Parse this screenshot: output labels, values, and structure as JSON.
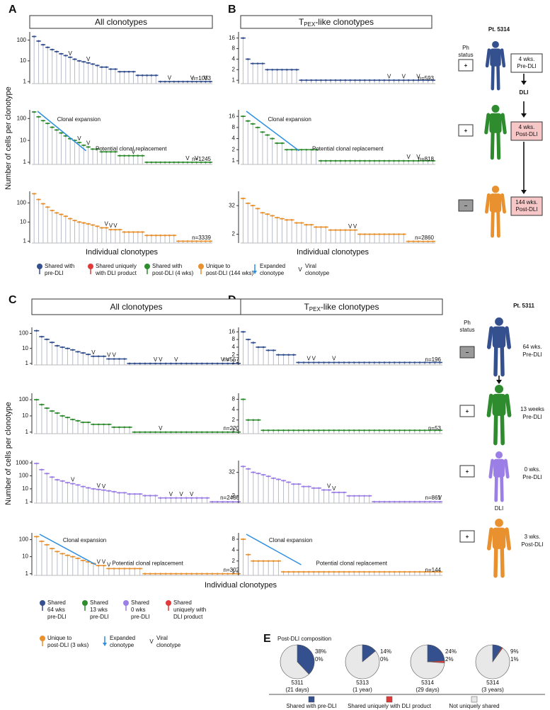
{
  "panel_letters": [
    "A",
    "B",
    "C",
    "D",
    "E"
  ],
  "y_axis_label": "Number of cells per clonotype",
  "x_axis_label": "Individual clonotypes",
  "headers": [
    "All clonotypes",
    {
      "main": "T",
      "sub": "PEX",
      "rest": "-like clonotypes"
    },
    "All clonotypes",
    {
      "main": "T",
      "sub": "PEX",
      "rest": "-like clonotypes"
    }
  ],
  "legend_top": [
    {
      "lines": [
        "Shared with",
        "pre-DLI"
      ],
      "color": "#34508f",
      "icon": "pin"
    },
    {
      "lines": [
        "Shared uniquely",
        "with DLI product"
      ],
      "color": "#e03a3a",
      "icon": "pin"
    },
    {
      "lines": [
        "Shared with",
        "post-DLI (4 wks)"
      ],
      "color": "#2e8b2e",
      "icon": "pin"
    },
    {
      "lines": [
        "Unique to",
        "post-DLI (144 wks)"
      ],
      "color": "#e8912e",
      "icon": "pin"
    },
    {
      "lines": [
        "Expanded",
        "clonotype"
      ],
      "color": "#2f8fe0",
      "icon": "arrow"
    },
    {
      "lines": [
        "Viral",
        "clonotype"
      ],
      "color": "#111111",
      "icon": "v",
      "symbol": "V"
    }
  ],
  "legend_bottom": [
    {
      "lines": [
        "Shared",
        "64 wks",
        "pre-DLI"
      ],
      "color": "#34508f",
      "icon": "pin"
    },
    {
      "lines": [
        "Shared",
        "13 wks",
        "pre-DLI"
      ],
      "color": "#2e8b2e",
      "icon": "pin"
    },
    {
      "lines": [
        "Shared",
        "0 wks",
        "pre-DLI"
      ],
      "color": "#9b7fe6",
      "icon": "pin"
    },
    {
      "lines": [
        "Shared",
        "uniquely with",
        "DLI product"
      ],
      "color": "#e03a3a",
      "icon": "pin"
    },
    {
      "lines": [
        "Unique to",
        "post-DLI (3 wks)"
      ],
      "color": "#e8912e",
      "icon": "pin"
    },
    {
      "lines": [
        "Expanded",
        "clonotype"
      ],
      "color": "#2f8fe0",
      "icon": "arrow"
    },
    {
      "lines": [
        "Viral",
        "clonotype"
      ],
      "color": "#111111",
      "icon": "v",
      "symbol": "V"
    }
  ],
  "patients": [
    {
      "title": "Pt. 5314",
      "ph_status": [
        "Ph",
        "status"
      ],
      "dli": "DLI",
      "rows": [
        {
          "sign": "+",
          "sign_color": "#ffffff",
          "label": [
            "4 wks.",
            "Pre-DLI"
          ],
          "label_bg": "#ffffff",
          "color": "#34508f"
        },
        {
          "sign": "+",
          "sign_color": "#ffffff",
          "label": [
            "4 wks.",
            "Post-DLI"
          ],
          "label_bg": "#f7c6c6",
          "color": "#2e8b2e"
        },
        {
          "sign": "−",
          "sign_color": "#9a9a9a",
          "label": [
            "144 wks.",
            "Post-DLI"
          ],
          "label_bg": "#f7c6c6",
          "color": "#e8912e"
        }
      ]
    },
    {
      "title": "Pt. 5311",
      "ph_status": [
        "Ph",
        "status"
      ],
      "dli": "DLI",
      "rows": [
        {
          "sign": "−",
          "sign_color": "#9a9a9a",
          "label": [
            "64 wks.",
            "Pre-DLI"
          ],
          "color": "#34508f"
        },
        {
          "sign": "+",
          "sign_color": "#ffffff",
          "label": [
            "13 weeks",
            "Pre-DLI"
          ],
          "color": "#2e8b2e"
        },
        {
          "sign": "+",
          "sign_color": "#ffffff",
          "label": [
            "0 wks.",
            "Pre-DLI"
          ],
          "color": "#9b7fe6"
        },
        {
          "sign": "+",
          "sign_color": "#ffffff",
          "label": [
            "3 wks.",
            "Post-DLI"
          ],
          "color": "#e8912e"
        }
      ]
    }
  ],
  "chart_data": [
    {
      "type": "lollipop",
      "log": true,
      "ylim": [
        0.8,
        250
      ],
      "yticks": [
        1,
        10,
        100
      ],
      "color": "#34508f",
      "values": [
        150,
        90,
        60,
        45,
        35,
        28,
        22,
        18,
        15,
        12,
        10,
        9,
        8,
        7,
        6,
        5,
        5,
        4,
        4,
        3,
        3,
        3,
        3,
        2,
        2,
        2,
        2,
        2,
        1,
        1,
        1,
        1,
        1,
        1,
        1,
        1,
        1,
        1,
        1,
        1
      ],
      "n_label": "n=1033",
      "viral_label": "V",
      "viral_at": [
        8,
        12,
        30,
        35,
        38
      ]
    },
    {
      "type": "lollipop",
      "log": true,
      "ylim": [
        0.8,
        250
      ],
      "yticks": [
        1,
        10,
        100
      ],
      "color": "#2e8b2e",
      "values": [
        200,
        120,
        80,
        60,
        40,
        30,
        22,
        16,
        12,
        10,
        8,
        6,
        5,
        4,
        4,
        3,
        3,
        3,
        3,
        2,
        2,
        2,
        2,
        2,
        2,
        1,
        1,
        1,
        1,
        1,
        1,
        1,
        1,
        1,
        1,
        1,
        1,
        1,
        1,
        1
      ],
      "n_label": "n=1245",
      "viral_label": "V",
      "viral_at": [
        10,
        12,
        22,
        34,
        36
      ],
      "annotations": [
        {
          "text": "Clonal expansion",
          "color": "#2f8fe0"
        },
        {
          "text": "Potential clonal replacement",
          "color": "#2e8b2e"
        }
      ]
    },
    {
      "type": "lollipop",
      "log": true,
      "ylim": [
        0.8,
        400
      ],
      "yticks": [
        1,
        10,
        100
      ],
      "color": "#e8912e",
      "values": [
        300,
        150,
        90,
        60,
        40,
        30,
        25,
        20,
        15,
        12,
        10,
        9,
        8,
        7,
        6,
        5,
        5,
        4,
        4,
        4,
        3,
        3,
        3,
        3,
        3,
        2,
        2,
        2,
        2,
        2,
        2,
        2,
        1,
        1,
        1,
        1,
        1,
        1,
        1,
        1
      ],
      "n_label": "n=3339",
      "viral_label": "V",
      "viral_at": [
        16,
        17,
        18
      ]
    },
    {
      "type": "lollipop",
      "log": true,
      "ylim": [
        0.8,
        24
      ],
      "yticks": [
        1,
        2,
        4,
        8,
        16
      ],
      "color": "#34508f",
      "values": [
        16,
        4,
        3,
        3,
        3,
        2,
        2,
        2,
        2,
        2,
        2,
        2,
        1,
        1,
        1,
        1,
        1,
        1,
        1,
        1,
        1,
        1,
        1,
        1,
        1,
        1,
        1,
        1,
        1,
        1,
        1,
        1,
        1,
        1,
        1,
        1,
        1,
        1,
        1,
        1
      ],
      "n_label": "n=593",
      "viral_label": "V",
      "viral_at": [
        30,
        33,
        36
      ]
    },
    {
      "type": "lollipop",
      "log": true,
      "ylim": [
        0.8,
        24
      ],
      "yticks": [
        1,
        2,
        4,
        8,
        16
      ],
      "color": "#2e8b2e",
      "values": [
        16,
        12,
        10,
        8,
        6,
        5,
        4,
        3,
        3,
        2,
        2,
        2,
        2,
        2,
        2,
        2,
        1,
        1,
        1,
        1,
        1,
        1,
        1,
        1,
        1,
        1,
        1,
        1,
        1,
        1,
        1,
        1,
        1,
        1,
        1,
        1,
        1,
        1,
        1,
        1
      ],
      "n_label": "n=818",
      "viral_label": "V",
      "viral_at": [
        34,
        36
      ],
      "annotations": [
        {
          "text": "Clonal expansion",
          "color": "#2f8fe0"
        },
        {
          "text": "Potential clonal replacement",
          "color": "#2e8b2e"
        }
      ]
    },
    {
      "type": "lollipop",
      "log": true,
      "ylim": [
        0.85,
        128
      ],
      "yticks": [
        2,
        32
      ],
      "color": "#e8912e",
      "values": [
        64,
        40,
        32,
        24,
        16,
        14,
        12,
        10,
        9,
        8,
        8,
        6,
        6,
        5,
        5,
        4,
        4,
        4,
        3,
        3,
        3,
        3,
        3,
        3,
        2,
        2,
        2,
        2,
        2,
        2,
        2,
        2,
        2,
        2,
        1,
        1,
        1,
        1,
        1,
        1
      ],
      "n_label": "n=2860",
      "viral_label": "V",
      "viral_at": [
        22,
        23
      ]
    },
    {
      "type": "lollipop",
      "log": true,
      "ylim": [
        0.8,
        250
      ],
      "yticks": [
        1,
        10,
        100
      ],
      "color": "#34508f",
      "values": [
        150,
        60,
        40,
        25,
        15,
        12,
        10,
        8,
        6,
        5,
        4,
        3,
        3,
        3,
        2,
        2,
        2,
        2,
        1,
        1,
        1,
        1,
        1,
        1,
        1,
        1,
        1,
        1,
        1,
        1,
        1,
        1,
        1,
        1,
        1,
        1,
        1,
        1,
        1,
        1
      ],
      "n_label": "n=557",
      "viral_label": "V",
      "viral_at": [
        11,
        14,
        15,
        23,
        24,
        27,
        36,
        37
      ]
    },
    {
      "type": "lollipop",
      "log": true,
      "ylim": [
        0.8,
        250
      ],
      "yticks": [
        1,
        10,
        100
      ],
      "color": "#2e8b2e",
      "values": [
        100,
        50,
        30,
        20,
        15,
        10,
        8,
        6,
        5,
        4,
        4,
        3,
        3,
        3,
        3,
        2,
        2,
        2,
        2,
        1,
        1,
        1,
        1,
        1,
        1,
        1,
        1,
        1,
        1,
        1,
        1,
        1,
        1,
        1,
        1,
        1,
        1,
        1,
        1,
        1
      ],
      "n_label": "n=220",
      "viral_label": "V",
      "viral_at": [
        24
      ]
    },
    {
      "type": "lollipop",
      "log": true,
      "ylim": [
        0.8,
        1500
      ],
      "yticks": [
        1,
        10,
        100,
        1000
      ],
      "color": "#9b7fe6",
      "values": [
        900,
        300,
        150,
        80,
        50,
        40,
        30,
        25,
        20,
        15,
        12,
        10,
        9,
        8,
        7,
        6,
        5,
        5,
        4,
        4,
        4,
        3,
        3,
        3,
        2,
        2,
        2,
        2,
        2,
        2,
        2,
        2,
        2,
        2,
        1,
        1,
        1,
        1,
        1,
        1
      ],
      "n_label": "n=2486",
      "viral_label": "V",
      "viral_at": [
        7,
        12,
        13,
        26,
        28,
        30
      ]
    },
    {
      "type": "lollipop",
      "log": true,
      "ylim": [
        0.8,
        250
      ],
      "yticks": [
        1,
        10,
        100
      ],
      "color": "#e8912e",
      "values": [
        150,
        80,
        50,
        30,
        20,
        15,
        12,
        10,
        8,
        6,
        5,
        4,
        3,
        3,
        2,
        2,
        2,
        2,
        2,
        2,
        2,
        1,
        1,
        1,
        1,
        1,
        1,
        1,
        1,
        1,
        1,
        1,
        1,
        1,
        1,
        1,
        1,
        1,
        1,
        1
      ],
      "n_label": "n=302",
      "viral_label": "V",
      "viral_at": [
        12,
        13,
        14
      ],
      "annotations": [
        {
          "text": "Clonal expansion",
          "color": "#2f8fe0"
        },
        {
          "text": "Potential clonal replacement",
          "color": "#111111"
        }
      ]
    },
    {
      "type": "lollipop",
      "log": true,
      "ylim": [
        0.8,
        24
      ],
      "yticks": [
        1,
        2,
        4,
        8,
        16
      ],
      "color": "#34508f",
      "values": [
        16,
        8,
        6,
        4,
        4,
        3,
        3,
        2,
        2,
        2,
        2,
        1,
        1,
        1,
        1,
        1,
        1,
        1,
        1,
        1,
        1,
        1,
        1,
        1,
        1,
        1,
        1,
        1,
        1,
        1,
        1,
        1,
        1,
        1,
        1,
        1,
        1,
        1,
        1,
        1
      ],
      "n_label": "n=196",
      "viral_label": "V",
      "viral_at": [
        13,
        14,
        18
      ]
    },
    {
      "type": "lollipop",
      "log": true,
      "ylim": [
        0.8,
        12
      ],
      "yticks": [
        1,
        2,
        4,
        8
      ],
      "color": "#2e8b2e",
      "values": [
        8,
        2,
        2,
        2,
        1,
        1,
        1,
        1,
        1,
        1,
        1,
        1,
        1,
        1,
        1,
        1,
        1,
        1,
        1,
        1,
        1,
        1,
        1,
        1,
        1,
        1,
        1,
        1,
        1,
        1,
        1,
        1,
        1,
        1,
        1,
        1,
        1,
        1,
        1,
        1
      ],
      "n_label": "n=53"
    },
    {
      "type": "lollipop",
      "log": true,
      "ylim": [
        0.85,
        128
      ],
      "yticks": [
        2,
        32
      ],
      "color": "#9b7fe6",
      "values": [
        64,
        48,
        32,
        28,
        24,
        20,
        16,
        14,
        12,
        10,
        8,
        8,
        6,
        6,
        5,
        5,
        4,
        4,
        3,
        3,
        3,
        2,
        2,
        2,
        2,
        2,
        1,
        1,
        1,
        1,
        1,
        1,
        1,
        1,
        1,
        1,
        1,
        1,
        1,
        1
      ],
      "n_label": "n=861",
      "viral_label": "V",
      "viral_at": [
        17,
        18,
        39
      ]
    },
    {
      "type": "lollipop",
      "log": true,
      "ylim": [
        0.8,
        12
      ],
      "yticks": [
        1,
        2,
        4,
        8
      ],
      "color": "#e8912e",
      "values": [
        8,
        3,
        2,
        2,
        2,
        2,
        2,
        2,
        1,
        1,
        1,
        1,
        1,
        1,
        1,
        1,
        1,
        1,
        1,
        1,
        1,
        1,
        1,
        1,
        1,
        1,
        1,
        1,
        1,
        1,
        1,
        1,
        1,
        1,
        1,
        1,
        1,
        1,
        1,
        1
      ],
      "n_label": "n=144",
      "annotations": [
        {
          "text": "Clonal expansion",
          "color": "#2f8fe0"
        },
        {
          "text": "Potential clonal replacement",
          "color": "#111111"
        }
      ]
    },
    {
      "type": "pie",
      "title": "Post-DLI composition",
      "categories": [
        "5311",
        "5313",
        "5314",
        "5314"
      ],
      "subcategories": [
        "(21 days)",
        "(1 year)",
        "(29 days)",
        "(3 years)"
      ],
      "series": [
        {
          "name": "Shared with pre-DLI",
          "color": "#34508f",
          "values": [
            38,
            14,
            24,
            9
          ],
          "value_labels": [
            "38%",
            "14%",
            "24%",
            "9%"
          ]
        },
        {
          "name": "Shared uniquely with DLI product",
          "color": "#e03a3a",
          "values": [
            0,
            0,
            2,
            1
          ],
          "value_labels": [
            "0%",
            "0%",
            "2%",
            "1%"
          ]
        }
      ],
      "remainder": {
        "name": "Not uniquely shared",
        "color": "#e8e8e8"
      }
    }
  ]
}
